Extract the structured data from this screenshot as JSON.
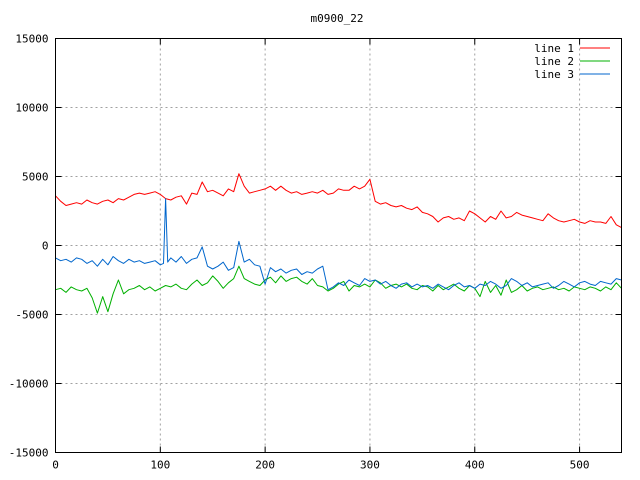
{
  "chart_data": {
    "type": "line",
    "title": "m0900_22",
    "xlabel": "",
    "ylabel": "",
    "xlim": [
      0,
      540
    ],
    "ylim": [
      -15000,
      15000
    ],
    "xticks": [
      0,
      100,
      200,
      300,
      400,
      500
    ],
    "yticks": [
      -15000,
      -10000,
      -5000,
      0,
      5000,
      10000,
      15000
    ],
    "grid": true,
    "legend": "top-right",
    "series": [
      {
        "name": "line 1",
        "color": "#ff0000",
        "x": [
          0,
          5,
          10,
          15,
          20,
          25,
          30,
          35,
          40,
          45,
          50,
          55,
          60,
          65,
          70,
          75,
          80,
          85,
          90,
          95,
          100,
          105,
          110,
          115,
          120,
          125,
          130,
          135,
          140,
          145,
          150,
          155,
          160,
          165,
          170,
          175,
          180,
          185,
          190,
          195,
          200,
          205,
          210,
          215,
          220,
          225,
          230,
          235,
          240,
          245,
          250,
          255,
          260,
          265,
          270,
          275,
          280,
          285,
          290,
          295,
          300,
          305,
          310,
          315,
          320,
          325,
          330,
          335,
          340,
          345,
          350,
          355,
          360,
          365,
          370,
          375,
          380,
          385,
          390,
          395,
          400,
          405,
          410,
          415,
          420,
          425,
          430,
          435,
          440,
          445,
          450,
          455,
          460,
          465,
          470,
          475,
          480,
          485,
          490,
          495,
          500,
          505,
          510,
          515,
          520,
          525,
          530,
          535,
          540
        ],
        "y": [
          3600,
          3200,
          2900,
          3000,
          3100,
          3000,
          3300,
          3100,
          3000,
          3200,
          3300,
          3100,
          3400,
          3300,
          3500,
          3700,
          3800,
          3700,
          3800,
          3900,
          3700,
          3400,
          3300,
          3500,
          3600,
          3000,
          3800,
          3700,
          4600,
          3900,
          4000,
          3800,
          3600,
          4100,
          3900,
          5200,
          4300,
          3800,
          3900,
          4000,
          4100,
          4300,
          4000,
          4300,
          4000,
          3800,
          3900,
          3700,
          3800,
          3900,
          3800,
          4000,
          3700,
          3800,
          4100,
          4000,
          4000,
          4300,
          4100,
          4300,
          4800,
          3200,
          3000,
          3100,
          2900,
          2800,
          2900,
          2700,
          2600,
          2800,
          2400,
          2300,
          2100,
          1700,
          2000,
          2100,
          1900,
          2000,
          1800,
          2500,
          2300,
          2000,
          1700,
          2100,
          1900,
          2500,
          2000,
          2100,
          2400,
          2200,
          2100,
          2000,
          1900,
          1800,
          2300,
          2000,
          1800,
          1700,
          1800,
          1900,
          1700,
          1600,
          1800,
          1700,
          1700,
          1600,
          2100,
          1500,
          1300
        ]
      },
      {
        "name": "line 2",
        "color": "#00b000",
        "x": [
          0,
          5,
          10,
          15,
          20,
          25,
          30,
          35,
          40,
          45,
          50,
          55,
          60,
          65,
          70,
          75,
          80,
          85,
          90,
          95,
          100,
          105,
          110,
          115,
          120,
          125,
          130,
          135,
          140,
          145,
          150,
          155,
          160,
          165,
          170,
          175,
          180,
          185,
          190,
          195,
          200,
          205,
          210,
          215,
          220,
          225,
          230,
          235,
          240,
          245,
          250,
          255,
          260,
          265,
          270,
          275,
          280,
          285,
          290,
          295,
          300,
          305,
          310,
          315,
          320,
          325,
          330,
          335,
          340,
          345,
          350,
          355,
          360,
          365,
          370,
          375,
          380,
          385,
          390,
          395,
          400,
          405,
          410,
          415,
          420,
          425,
          430,
          435,
          440,
          445,
          450,
          455,
          460,
          465,
          470,
          475,
          480,
          485,
          490,
          495,
          500,
          505,
          510,
          515,
          520,
          525,
          530,
          535,
          540
        ],
        "y": [
          -3200,
          -3100,
          -3400,
          -3000,
          -3200,
          -3300,
          -3100,
          -3800,
          -4900,
          -3700,
          -4800,
          -3500,
          -2500,
          -3500,
          -3200,
          -3100,
          -2900,
          -3200,
          -3000,
          -3300,
          -3100,
          -2900,
          -3000,
          -2800,
          -3100,
          -3200,
          -2800,
          -2500,
          -2900,
          -2700,
          -2200,
          -2600,
          -3100,
          -2700,
          -2400,
          -1500,
          -2400,
          -2600,
          -2800,
          -2900,
          -2500,
          -2300,
          -2700,
          -2200,
          -2600,
          -2400,
          -2300,
          -2600,
          -2800,
          -2400,
          -2900,
          -3000,
          -3300,
          -3100,
          -2800,
          -2600,
          -3300,
          -2900,
          -3000,
          -2800,
          -3000,
          -2500,
          -2700,
          -3100,
          -2900,
          -2800,
          -3000,
          -2800,
          -3100,
          -3200,
          -2900,
          -3000,
          -3300,
          -2900,
          -3200,
          -3000,
          -2800,
          -3100,
          -3300,
          -2900,
          -3100,
          -3700,
          -2600,
          -3400,
          -2900,
          -3600,
          -2500,
          -3400,
          -3200,
          -2900,
          -3300,
          -3100,
          -3000,
          -3200,
          -3100,
          -3000,
          -3200,
          -3100,
          -3300,
          -3000,
          -3100,
          -3200,
          -3000,
          -3100,
          -3300,
          -3000,
          -3200,
          -2700,
          -3100
        ]
      },
      {
        "name": "line 3",
        "color": "#0066cc",
        "x": [
          0,
          5,
          10,
          15,
          20,
          25,
          30,
          35,
          40,
          45,
          50,
          55,
          60,
          65,
          70,
          75,
          80,
          85,
          90,
          95,
          100,
          103,
          105,
          107,
          110,
          115,
          120,
          125,
          130,
          135,
          140,
          145,
          150,
          155,
          160,
          165,
          170,
          175,
          180,
          185,
          190,
          195,
          200,
          205,
          210,
          215,
          220,
          225,
          230,
          235,
          240,
          245,
          250,
          255,
          260,
          265,
          270,
          275,
          280,
          285,
          290,
          295,
          300,
          305,
          310,
          315,
          320,
          325,
          330,
          335,
          340,
          345,
          350,
          355,
          360,
          365,
          370,
          375,
          380,
          385,
          390,
          395,
          400,
          405,
          410,
          415,
          420,
          425,
          430,
          435,
          440,
          445,
          450,
          455,
          460,
          465,
          470,
          475,
          480,
          485,
          490,
          495,
          500,
          505,
          510,
          515,
          520,
          525,
          530,
          535,
          540
        ],
        "y": [
          -900,
          -1100,
          -1000,
          -1200,
          -900,
          -1000,
          -1300,
          -1100,
          -1500,
          -1000,
          -1400,
          -800,
          -1100,
          -1300,
          -1000,
          -1200,
          -1100,
          -1300,
          -1200,
          -1100,
          -1400,
          -1300,
          3400,
          -1200,
          -900,
          -1200,
          -800,
          -1300,
          -1000,
          -900,
          -100,
          -1500,
          -1700,
          -1500,
          -1200,
          -1800,
          -1600,
          300,
          -1200,
          -1000,
          -1400,
          -1500,
          -2800,
          -1600,
          -1900,
          -1700,
          -2000,
          -1800,
          -1700,
          -2100,
          -1900,
          -2000,
          -1700,
          -1500,
          -3200,
          -3000,
          -2700,
          -2900,
          -2500,
          -2700,
          -2900,
          -2400,
          -2600,
          -2500,
          -2800,
          -2600,
          -2900,
          -3100,
          -2800,
          -2700,
          -3000,
          -2800,
          -3000,
          -2900,
          -3100,
          -2800,
          -3000,
          -3200,
          -2900,
          -2700,
          -3000,
          -2900,
          -3100,
          -2800,
          -2900,
          -2600,
          -2800,
          -3100,
          -2900,
          -2400,
          -2600,
          -2900,
          -2700,
          -3000,
          -2900,
          -2800,
          -2700,
          -3100,
          -2900,
          -2600,
          -2800,
          -3000,
          -2700,
          -2600,
          -2800,
          -2900,
          -2600,
          -2700,
          -2800,
          -2400,
          -2500
        ]
      }
    ]
  }
}
